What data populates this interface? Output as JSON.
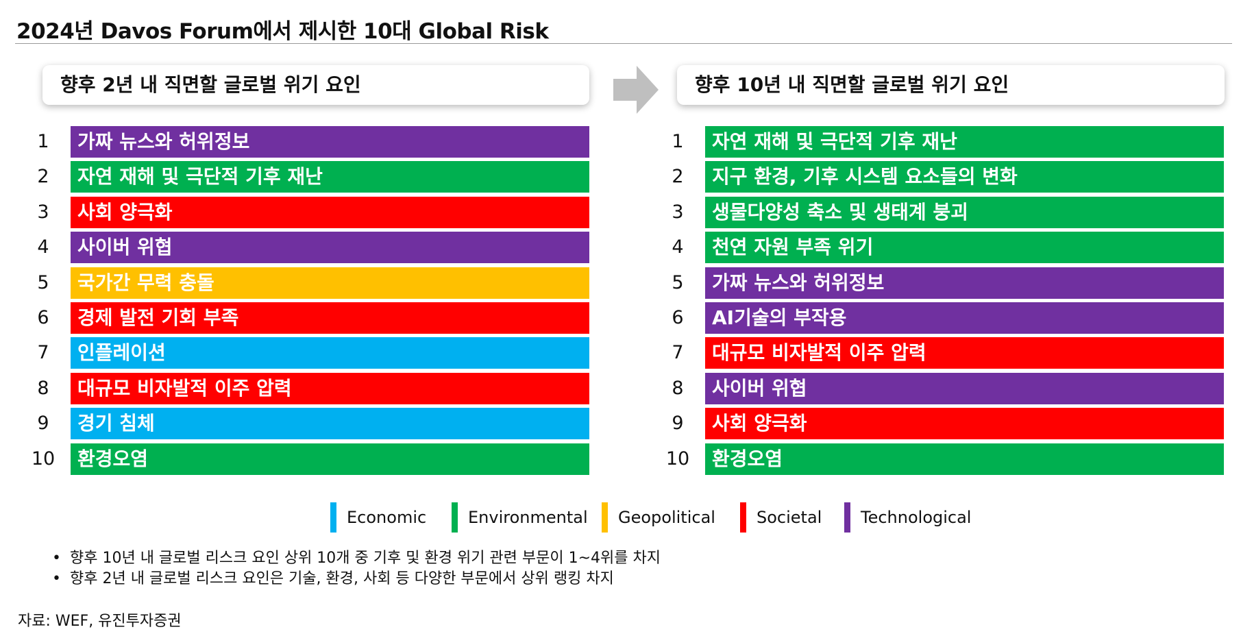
{
  "title": "2024년 Davos Forum에서 제시한 10대 Global Risk",
  "colors": {
    "Economic": "#00B0F0",
    "Environmental": "#00B050",
    "Geopolitical": "#FFC000",
    "Societal": "#FF0000",
    "Technological": "#7030A0"
  },
  "left": {
    "header": "향후 2년 내 직면할 글로벌 위기 요인",
    "items": [
      {
        "rank": "1",
        "label": "가짜 뉴스와 허위정보",
        "category": "Technological"
      },
      {
        "rank": "2",
        "label": "자연 재해 및 극단적 기후 재난",
        "category": "Environmental"
      },
      {
        "rank": "3",
        "label": "사회 양극화",
        "category": "Societal"
      },
      {
        "rank": "4",
        "label": "사이버 위협",
        "category": "Technological"
      },
      {
        "rank": "5",
        "label": "국가간 무력 충돌",
        "category": "Geopolitical"
      },
      {
        "rank": "6",
        "label": "경제 발전 기회 부족",
        "category": "Societal"
      },
      {
        "rank": "7",
        "label": "인플레이션",
        "category": "Economic"
      },
      {
        "rank": "8",
        "label": "대규모 비자발적 이주 압력",
        "category": "Societal"
      },
      {
        "rank": "9",
        "label": "경기 침체",
        "category": "Economic"
      },
      {
        "rank": "10",
        "label": "환경오염",
        "category": "Environmental"
      }
    ]
  },
  "right": {
    "header": "향후 10년 내 직면할 글로벌 위기 요인",
    "items": [
      {
        "rank": "1",
        "label": "자연 재해 및 극단적 기후 재난",
        "category": "Environmental"
      },
      {
        "rank": "2",
        "label": "지구 환경, 기후 시스템 요소들의 변화",
        "category": "Environmental"
      },
      {
        "rank": "3",
        "label": "생물다양성 축소 및 생태계 붕괴",
        "category": "Environmental"
      },
      {
        "rank": "4",
        "label": "천연 자원 부족 위기",
        "category": "Environmental"
      },
      {
        "rank": "5",
        "label": "가짜 뉴스와 허위정보",
        "category": "Technological"
      },
      {
        "rank": "6",
        "label": "AI기술의 부작용",
        "category": "Technological"
      },
      {
        "rank": "7",
        "label": "대규모 비자발적 이주 압력",
        "category": "Societal"
      },
      {
        "rank": "8",
        "label": "사이버 위협",
        "category": "Technological"
      },
      {
        "rank": "9",
        "label": "사회 양극화",
        "category": "Societal"
      },
      {
        "rank": "10",
        "label": "환경오염",
        "category": "Environmental"
      }
    ]
  },
  "legend": [
    {
      "label": "Economic",
      "color": "#00B0F0"
    },
    {
      "label": "Environmental",
      "color": "#00B050"
    },
    {
      "label": "Geopolitical",
      "color": "#FFC000"
    },
    {
      "label": "Societal",
      "color": "#FF0000"
    },
    {
      "label": "Technological",
      "color": "#7030A0"
    }
  ],
  "notes": [
    "향후 10년 내 글로벌 리스크 요인 상위 10개 중 기후 및 환경 위기 관련 부문이 1~4위를 차지",
    "향후 2년 내 글로벌 리스크 요인은 기술, 환경, 사회 등 다양한 부문에서 상위 랭킹 차지"
  ],
  "source": "자료: WEF, 유진투자증권"
}
